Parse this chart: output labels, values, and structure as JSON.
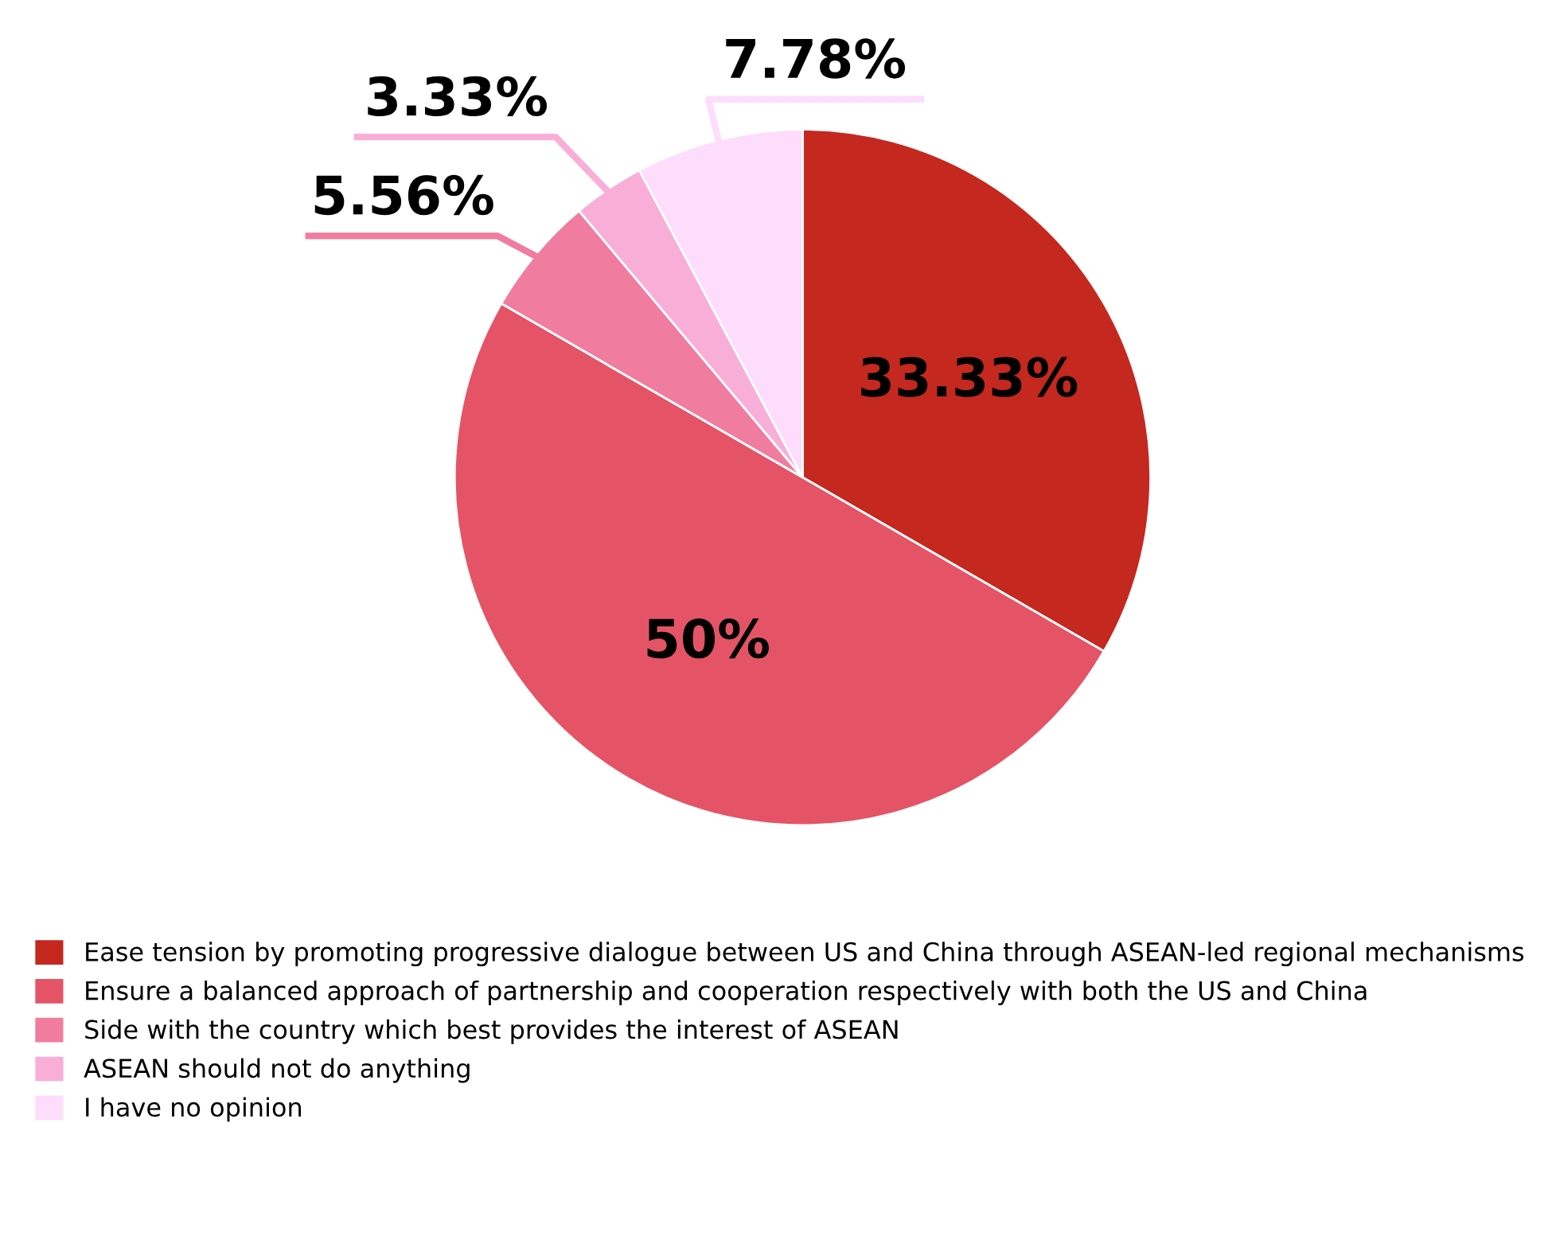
{
  "chart_data": {
    "type": "pie",
    "categories": [
      "Ease tension by promoting progressive dialogue between US and China through ASEAN-led regional mechanisms",
      "Ensure a balanced approach of partnership and cooperation respectively with both the US and China",
      "Side with the country which best provides the interest of ASEAN",
      "ASEAN should not do anything",
      "I have no opinion"
    ],
    "values": [
      33.33,
      50,
      5.56,
      3.33,
      7.78
    ],
    "colors": [
      "#c4281f",
      "#e45466",
      "#f07ca0",
      "#f9aed8",
      "#fddcfc"
    ],
    "value_labels": [
      "33.33%",
      "50%",
      "5.56%",
      "3.33%",
      "7.78%"
    ],
    "legend": "bottom"
  }
}
